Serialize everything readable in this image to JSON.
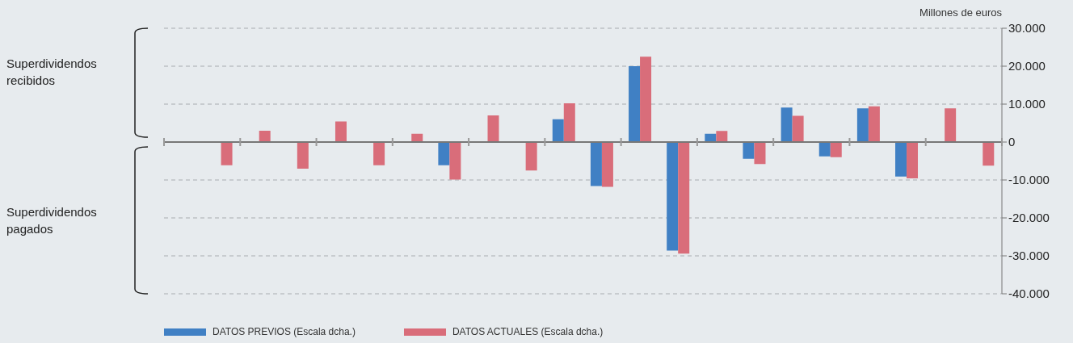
{
  "chart_data": {
    "type": "bar",
    "ylabel": "Millones de euros",
    "annotations": [
      "Superdividendos recibidos",
      "Superdividendos pagados"
    ],
    "categories": [
      null,
      null,
      null,
      null,
      null,
      null,
      null,
      null,
      null,
      null,
      null,
      null,
      null,
      null,
      null,
      null,
      null,
      null,
      null,
      null,
      null,
      null
    ],
    "series": [
      {
        "name": "DATOS PREVIOS (Escala dcha.)",
        "color": "#4080c4",
        "values": [
          null,
          null,
          null,
          null,
          null,
          null,
          null,
          -6100,
          null,
          null,
          6000,
          -11600,
          20000,
          -28600,
          2200,
          -4400,
          9100,
          -3800,
          8900,
          -9100,
          null,
          null
        ]
      },
      {
        "name": "DATOS ACTUALES (Escala dcha.)",
        "color": "#d96d7a",
        "values": [
          null,
          -6100,
          3000,
          -7000,
          5400,
          -6100,
          2200,
          -9900,
          7000,
          -7500,
          10200,
          -11800,
          22500,
          -29400,
          2900,
          -5800,
          6900,
          -4000,
          9400,
          -9600,
          8900,
          -6200
        ]
      }
    ],
    "ylim": [
      -40000,
      30000
    ],
    "yticks": [
      {
        "value": -40000,
        "label": "-40.000"
      },
      {
        "value": -30000,
        "label": "-30.000"
      },
      {
        "value": -20000,
        "label": "-20.000"
      },
      {
        "value": -10000,
        "label": "-10.000"
      },
      0,
      {
        "value": 10000,
        "label": "10.000"
      },
      {
        "value": 20000,
        "label": "20.000"
      },
      {
        "value": 30000,
        "label": "30.000"
      }
    ],
    "grid": "y",
    "legend": "bottom left"
  }
}
